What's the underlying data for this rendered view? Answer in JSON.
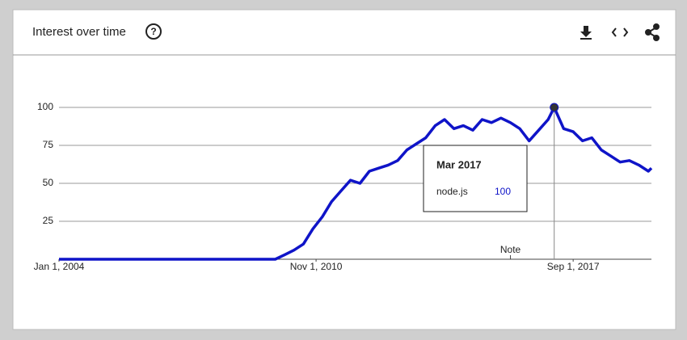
{
  "chart_data": {
    "type": "line",
    "title": "Interest over time",
    "x": [
      "2004-01-01",
      "2004-04-01",
      "2004-07-01",
      "2004-10-01",
      "2005-01-01",
      "2005-04-01",
      "2005-07-01",
      "2005-10-01",
      "2006-01-01",
      "2006-04-01",
      "2006-07-01",
      "2006-10-01",
      "2007-01-01",
      "2007-04-01",
      "2007-07-01",
      "2007-10-01",
      "2008-01-01",
      "2008-04-01",
      "2008-07-01",
      "2008-10-01",
      "2009-01-01",
      "2009-04-01",
      "2009-07-01",
      "2009-10-01",
      "2010-01-01",
      "2010-04-01",
      "2010-07-01",
      "2010-10-01",
      "2011-01-01",
      "2011-04-01",
      "2011-07-01",
      "2011-10-01",
      "2012-01-01",
      "2012-04-01",
      "2012-07-01",
      "2012-10-01",
      "2013-01-01",
      "2013-04-01",
      "2013-07-01",
      "2013-10-01",
      "2014-01-01",
      "2014-04-01",
      "2014-07-01",
      "2014-10-01",
      "2015-01-01",
      "2015-04-01",
      "2015-07-01",
      "2015-10-01",
      "2016-01-01",
      "2016-04-01",
      "2016-07-01",
      "2016-10-01",
      "2017-01-01",
      "2017-03-01",
      "2017-06-01",
      "2017-09-01",
      "2017-12-01",
      "2018-03-01",
      "2018-06-01",
      "2018-09-01",
      "2018-12-01",
      "2019-03-01",
      "2019-06-01",
      "2019-09-01",
      "2019-10-01"
    ],
    "series": [
      {
        "name": "node.js",
        "color": "#0f14c8",
        "values": [
          0,
          0,
          0,
          0,
          0,
          0,
          0,
          0,
          0,
          0,
          0,
          0,
          0,
          0,
          0,
          0,
          0,
          0,
          0,
          0,
          0,
          0,
          0,
          0,
          3,
          6,
          10,
          20,
          28,
          38,
          45,
          52,
          50,
          58,
          60,
          62,
          65,
          72,
          76,
          80,
          88,
          92,
          86,
          88,
          85,
          92,
          90,
          93,
          90,
          86,
          78,
          85,
          92,
          100,
          86,
          84,
          78,
          80,
          72,
          68,
          64,
          65,
          62,
          58,
          60
        ]
      }
    ],
    "xlim": [
      "2004-01-01",
      "2019-10-01"
    ],
    "xticks": [
      {
        "value": "2004-01-01",
        "label": "Jan 1, 2004"
      },
      {
        "value": "2010-11-01",
        "label": "Nov 1, 2010"
      },
      {
        "value": "2017-09-01",
        "label": "Sep 1, 2017"
      }
    ],
    "ylim": [
      0,
      100
    ],
    "yticks": [
      25,
      50,
      75,
      100
    ],
    "grid": true,
    "annotations": [
      {
        "x": "2016-01-01",
        "text": "Note"
      }
    ],
    "tooltip": {
      "title": "Mar 2017"
    }
  }
}
